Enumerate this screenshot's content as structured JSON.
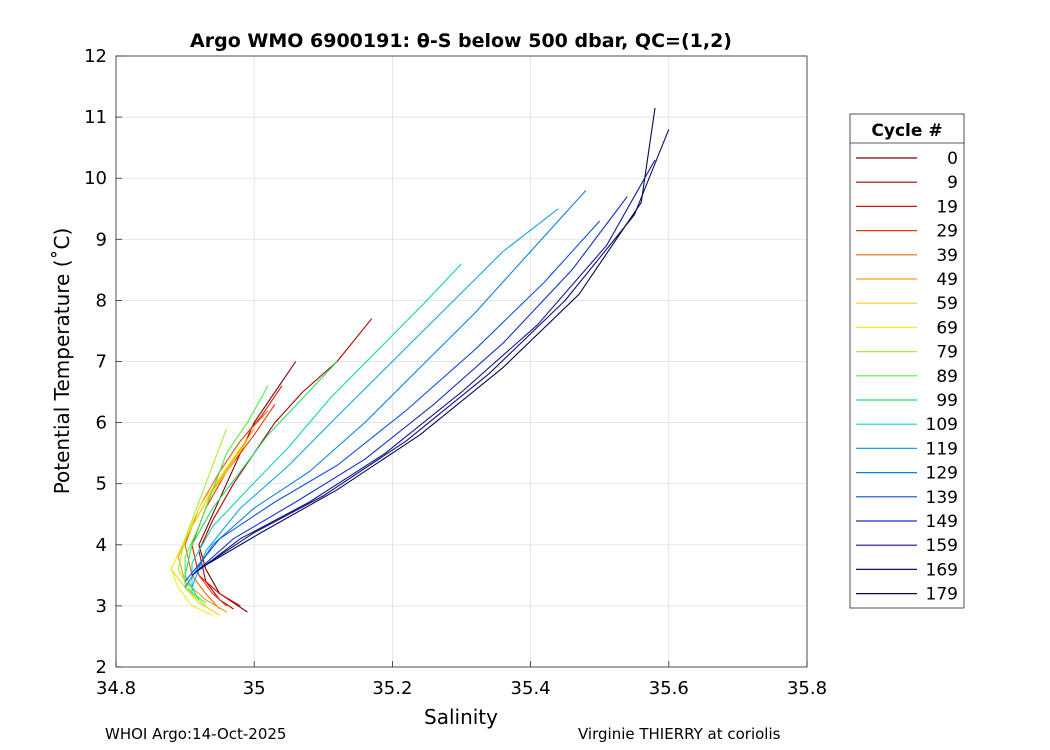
{
  "chart_data": {
    "type": "line",
    "title": "Argo WMO 6900191: θ-S below 500 dbar,  QC=(1,2)",
    "xlabel": "Salinity",
    "ylabel": "Potential Temperature (˚C)",
    "xlim": [
      34.8,
      35.8
    ],
    "ylim": [
      2,
      12
    ],
    "xticks": [
      34.8,
      35,
      35.2,
      35.4,
      35.6,
      35.8
    ],
    "xtick_labels": [
      "34.8",
      "35",
      "35.2",
      "35.4",
      "35.6",
      "35.8"
    ],
    "yticks": [
      2,
      3,
      4,
      5,
      6,
      7,
      8,
      9,
      10,
      11,
      12
    ],
    "ytick_labels": [
      "2",
      "3",
      "4",
      "5",
      "6",
      "7",
      "8",
      "9",
      "10",
      "11",
      "12"
    ],
    "grid": true,
    "legend": {
      "title": "Cycle #",
      "placement": "outside-right",
      "entries": [
        "0",
        "9",
        "19",
        "29",
        "39",
        "49",
        "59",
        "69",
        "79",
        "89",
        "99",
        "109",
        "119",
        "129",
        "139",
        "149",
        "159",
        "169",
        "179"
      ],
      "colors": [
        "#7f0000",
        "#b00000",
        "#d81010",
        "#e83a10",
        "#f06a10",
        "#f89a10",
        "#f8d010",
        "#f0f020",
        "#a8f030",
        "#50f040",
        "#20e070",
        "#10d0c0",
        "#10a8e8",
        "#1080e0",
        "#1050e0",
        "#1830c8",
        "#101890",
        "#0a1070",
        "#050a50"
      ]
    },
    "series": [
      {
        "name": "0",
        "x": [
          34.99,
          34.97,
          34.95,
          34.93,
          34.92,
          34.94,
          34.96,
          34.98,
          35.0,
          35.03,
          35.06
        ],
        "y": [
          2.9,
          3.05,
          3.2,
          3.6,
          4.0,
          4.5,
          5.0,
          5.5,
          6.0,
          6.5,
          7.0
        ]
      },
      {
        "name": "9",
        "x": [
          34.97,
          34.95,
          34.93,
          34.92,
          34.94,
          34.97,
          35.0,
          35.03,
          35.07,
          35.12,
          35.17
        ],
        "y": [
          2.95,
          3.1,
          3.4,
          3.9,
          4.4,
          5.0,
          5.5,
          6.0,
          6.5,
          7.0,
          7.7
        ]
      },
      {
        "name": "19",
        "x": [
          34.98,
          34.95,
          34.92,
          34.91,
          34.93,
          34.95,
          34.98,
          35.01,
          35.04
        ],
        "y": [
          3.0,
          3.2,
          3.5,
          4.0,
          4.6,
          5.2,
          5.7,
          6.1,
          6.6
        ]
      },
      {
        "name": "29",
        "x": [
          34.96,
          34.94,
          34.92,
          34.91,
          34.93,
          34.96,
          35.0,
          35.03
        ],
        "y": [
          3.0,
          3.2,
          3.5,
          4.0,
          4.6,
          5.2,
          5.8,
          6.3
        ]
      },
      {
        "name": "39",
        "x": [
          34.95,
          34.93,
          34.91,
          34.9,
          34.92,
          34.95,
          34.98,
          35.02
        ],
        "y": [
          2.95,
          3.2,
          3.5,
          4.0,
          4.6,
          5.2,
          5.7,
          6.2
        ]
      },
      {
        "name": "49",
        "x": [
          34.96,
          34.93,
          34.9,
          34.89,
          34.91,
          34.94,
          34.97,
          35.0
        ],
        "y": [
          2.9,
          3.1,
          3.4,
          3.8,
          4.3,
          4.9,
          5.4,
          5.9
        ]
      },
      {
        "name": "59",
        "x": [
          34.95,
          34.92,
          34.9,
          34.88,
          34.9,
          34.93,
          34.96,
          34.99
        ],
        "y": [
          2.85,
          3.05,
          3.3,
          3.6,
          4.1,
          4.7,
          5.2,
          5.7
        ]
      },
      {
        "name": "69",
        "x": [
          34.94,
          34.91,
          34.89,
          34.88,
          34.9,
          34.92,
          34.95,
          34.98
        ],
        "y": [
          2.85,
          3.0,
          3.3,
          3.6,
          4.1,
          4.6,
          5.1,
          5.6
        ]
      },
      {
        "name": "79",
        "x": [
          34.93,
          34.91,
          34.89,
          34.9,
          34.92,
          34.94,
          34.96
        ],
        "y": [
          3.0,
          3.2,
          3.6,
          4.1,
          4.7,
          5.3,
          5.9
        ]
      },
      {
        "name": "89",
        "x": [
          34.93,
          34.9,
          34.9,
          34.92,
          34.94,
          34.96,
          34.99,
          35.02
        ],
        "y": [
          3.05,
          3.3,
          3.8,
          4.3,
          4.9,
          5.5,
          6.0,
          6.6
        ]
      },
      {
        "name": "99",
        "x": [
          34.92,
          34.9,
          34.91,
          34.94,
          34.98,
          35.02,
          35.07,
          35.12
        ],
        "y": [
          3.1,
          3.5,
          4.0,
          4.6,
          5.2,
          5.8,
          6.4,
          7.0
        ]
      },
      {
        "name": "109",
        "x": [
          34.91,
          34.91,
          34.94,
          34.99,
          35.05,
          35.11,
          35.18,
          35.25,
          35.3
        ],
        "y": [
          3.2,
          3.7,
          4.3,
          4.9,
          5.6,
          6.4,
          7.2,
          8.0,
          8.6
        ]
      },
      {
        "name": "119",
        "x": [
          34.91,
          34.93,
          34.98,
          35.05,
          35.12,
          35.2,
          35.28,
          35.36,
          35.44
        ],
        "y": [
          3.3,
          3.9,
          4.6,
          5.3,
          6.1,
          7.0,
          7.9,
          8.8,
          9.5
        ]
      },
      {
        "name": "129",
        "x": [
          34.9,
          34.94,
          35.0,
          35.08,
          35.16,
          35.24,
          35.32,
          35.4,
          35.48
        ],
        "y": [
          3.3,
          4.0,
          4.6,
          5.2,
          6.0,
          6.9,
          7.8,
          8.8,
          9.8
        ]
      },
      {
        "name": "139",
        "x": [
          34.9,
          34.95,
          35.03,
          35.12,
          35.22,
          35.32,
          35.42,
          35.5
        ],
        "y": [
          3.4,
          4.1,
          4.7,
          5.3,
          6.2,
          7.2,
          8.3,
          9.3
        ]
      },
      {
        "name": "149",
        "x": [
          34.91,
          34.97,
          35.06,
          35.16,
          35.26,
          35.36,
          35.46,
          35.54
        ],
        "y": [
          3.5,
          4.1,
          4.7,
          5.4,
          6.3,
          7.3,
          8.5,
          9.7
        ]
      },
      {
        "name": "159",
        "x": [
          34.91,
          34.98,
          35.08,
          35.19,
          35.3,
          35.41,
          35.51,
          35.58
        ],
        "y": [
          3.5,
          4.1,
          4.7,
          5.5,
          6.5,
          7.6,
          8.9,
          10.3
        ]
      },
      {
        "name": "169",
        "x": [
          34.92,
          35.0,
          35.1,
          35.22,
          35.34,
          35.45,
          35.55,
          35.6
        ],
        "y": [
          3.6,
          4.2,
          4.8,
          5.7,
          6.8,
          8.0,
          9.4,
          10.8
        ]
      },
      {
        "name": "179",
        "x": [
          34.92,
          35.01,
          35.12,
          35.24,
          35.36,
          35.47,
          35.56,
          35.58
        ],
        "y": [
          3.6,
          4.2,
          4.9,
          5.8,
          6.9,
          8.1,
          9.6,
          11.15
        ]
      }
    ]
  },
  "footer": {
    "left": "WHOI Argo:14-Oct-2025",
    "right": "Virginie THIERRY at coriolis"
  }
}
